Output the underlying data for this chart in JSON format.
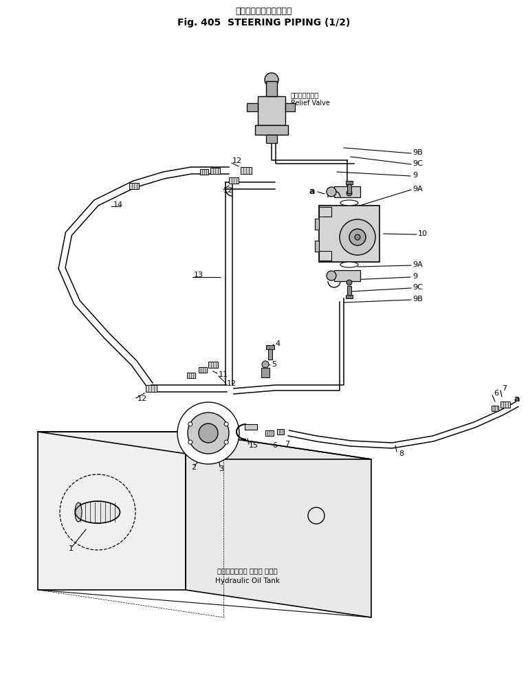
{
  "title_jp": "ステアリングパイピング",
  "title_en": "Fig. 405  STEERING PIPING (1/2)",
  "bg_color": "#ffffff",
  "relief_valve_label_jp": "リリーフバルブ",
  "relief_valve_label_en": "Relief Valve",
  "hydraulic_tank_label_jp": "ハイドロリック オイル タンク",
  "hydraulic_tank_label_en": "Hydraulic Oil Tank",
  "fig_width": 7.68,
  "fig_height": 10.08,
  "dpi": 100
}
